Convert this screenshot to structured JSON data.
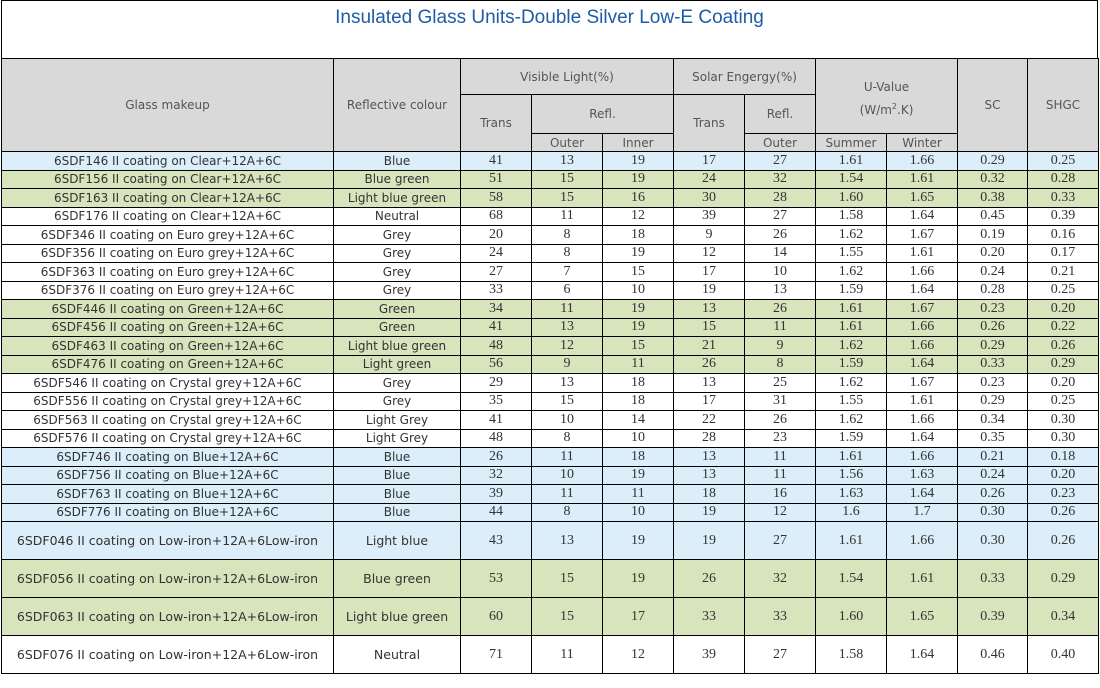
{
  "title": "Insulated Glass Units-Double Silver Low-E Coating",
  "headers": {
    "glass_makeup": "Glass makeup",
    "reflective_colour": "Reflective colour",
    "visible_light": "Visible Light(%)",
    "solar_energy": "Solar Engergy(%)",
    "u_value_line1": "U-Value",
    "u_value_unit_pre": "(W/m",
    "u_value_unit_sup": "2",
    "u_value_unit_post": ".K)",
    "sc": "SC",
    "shgc": "SHGC",
    "trans": "Trans",
    "refl": "Refl.",
    "outer": "Outer",
    "inner": "Inner",
    "summer": "Summer",
    "winter": "Winter"
  },
  "row_colors": {
    "blue": "#dbeef9",
    "green": "#d8e4bc",
    "white": "#ffffff",
    "header": "#d9d9d9",
    "title": "#1f5ba7"
  },
  "rows": [
    {
      "makeup": "6SDF146 II coating on Clear+12A+6C",
      "colour": "Blue",
      "vl_trans": "41",
      "vl_outer": "13",
      "vl_inner": "19",
      "se_trans": "17",
      "se_outer": "27",
      "u_summer": "1.61",
      "u_winter": "1.66",
      "sc": "0.29",
      "shgc": "0.25",
      "bg": "blue"
    },
    {
      "makeup": "6SDF156 II coating on Clear+12A+6C",
      "colour": "Blue green",
      "vl_trans": "51",
      "vl_outer": "15",
      "vl_inner": "19",
      "se_trans": "24",
      "se_outer": "32",
      "u_summer": "1.54",
      "u_winter": "1.61",
      "sc": "0.32",
      "shgc": "0.28",
      "bg": "green"
    },
    {
      "makeup": "6SDF163 II coating on Clear+12A+6C",
      "colour": "Light blue green",
      "vl_trans": "58",
      "vl_outer": "15",
      "vl_inner": "16",
      "se_trans": "30",
      "se_outer": "28",
      "u_summer": "1.60",
      "u_winter": "1.65",
      "sc": "0.38",
      "shgc": "0.33",
      "bg": "green"
    },
    {
      "makeup": "6SDF176 II coating on Clear+12A+6C",
      "colour": "Neutral",
      "vl_trans": "68",
      "vl_outer": "11",
      "vl_inner": "12",
      "se_trans": "39",
      "se_outer": "27",
      "u_summer": "1.58",
      "u_winter": "1.64",
      "sc": "0.45",
      "shgc": "0.39",
      "bg": "white"
    },
    {
      "makeup": "6SDF346 II coating on Euro grey+12A+6C",
      "colour": "Grey",
      "vl_trans": "20",
      "vl_outer": "8",
      "vl_inner": "18",
      "se_trans": "9",
      "se_outer": "26",
      "u_summer": "1.62",
      "u_winter": "1.67",
      "sc": "0.19",
      "shgc": "0.16",
      "bg": "white"
    },
    {
      "makeup": "6SDF356 II coating on Euro grey+12A+6C",
      "colour": "Grey",
      "vl_trans": "24",
      "vl_outer": "8",
      "vl_inner": "19",
      "se_trans": "12",
      "se_outer": "14",
      "u_summer": "1.55",
      "u_winter": "1.61",
      "sc": "0.20",
      "shgc": "0.17",
      "bg": "white"
    },
    {
      "makeup": "6SDF363 II coating on Euro grey+12A+6C",
      "colour": "Grey",
      "vl_trans": "27",
      "vl_outer": "7",
      "vl_inner": "15",
      "se_trans": "17",
      "se_outer": "10",
      "u_summer": "1.62",
      "u_winter": "1.66",
      "sc": "0.24",
      "shgc": "0.21",
      "bg": "white"
    },
    {
      "makeup": "6SDF376 II coating on Euro grey+12A+6C",
      "colour": "Grey",
      "vl_trans": "33",
      "vl_outer": "6",
      "vl_inner": "10",
      "se_trans": "19",
      "se_outer": "13",
      "u_summer": "1.59",
      "u_winter": "1.64",
      "sc": "0.28",
      "shgc": "0.25",
      "bg": "white"
    },
    {
      "makeup": "6SDF446 II coating on Green+12A+6C",
      "colour": "Green",
      "vl_trans": "34",
      "vl_outer": "11",
      "vl_inner": "19",
      "se_trans": "13",
      "se_outer": "26",
      "u_summer": "1.61",
      "u_winter": "1.67",
      "sc": "0.23",
      "shgc": "0.20",
      "bg": "green"
    },
    {
      "makeup": "6SDF456 II coating on Green+12A+6C",
      "colour": "Green",
      "vl_trans": "41",
      "vl_outer": "13",
      "vl_inner": "19",
      "se_trans": "15",
      "se_outer": "11",
      "u_summer": "1.61",
      "u_winter": "1.66",
      "sc": "0.26",
      "shgc": "0.22",
      "bg": "green"
    },
    {
      "makeup": "6SDF463 II coating on Green+12A+6C",
      "colour": "Light blue green",
      "vl_trans": "48",
      "vl_outer": "12",
      "vl_inner": "15",
      "se_trans": "21",
      "se_outer": "9",
      "u_summer": "1.62",
      "u_winter": "1.66",
      "sc": "0.29",
      "shgc": "0.26",
      "bg": "green"
    },
    {
      "makeup": "6SDF476 II coating on Green+12A+6C",
      "colour": "Light green",
      "vl_trans": "56",
      "vl_outer": "9",
      "vl_inner": "11",
      "se_trans": "26",
      "se_outer": "8",
      "u_summer": "1.59",
      "u_winter": "1.64",
      "sc": "0.33",
      "shgc": "0.29",
      "bg": "green"
    },
    {
      "makeup": "6SDF546 II coating on Crystal grey+12A+6C",
      "colour": "Grey",
      "vl_trans": "29",
      "vl_outer": "13",
      "vl_inner": "18",
      "se_trans": "13",
      "se_outer": "25",
      "u_summer": "1.62",
      "u_winter": "1.67",
      "sc": "0.23",
      "shgc": "0.20",
      "bg": "white"
    },
    {
      "makeup": "6SDF556 II coating on Crystal grey+12A+6C",
      "colour": "Grey",
      "vl_trans": "35",
      "vl_outer": "15",
      "vl_inner": "18",
      "se_trans": "17",
      "se_outer": "31",
      "u_summer": "1.55",
      "u_winter": "1.61",
      "sc": "0.29",
      "shgc": "0.25",
      "bg": "white"
    },
    {
      "makeup": "6SDF563 II coating on Crystal grey+12A+6C",
      "colour": "Light Grey",
      "vl_trans": "41",
      "vl_outer": "10",
      "vl_inner": "14",
      "se_trans": "22",
      "se_outer": "26",
      "u_summer": "1.62",
      "u_winter": "1.66",
      "sc": "0.34",
      "shgc": "0.30",
      "bg": "white"
    },
    {
      "makeup": "6SDF576 II coating on Crystal grey+12A+6C",
      "colour": "Light Grey",
      "vl_trans": "48",
      "vl_outer": "8",
      "vl_inner": "10",
      "se_trans": "28",
      "se_outer": "23",
      "u_summer": "1.59",
      "u_winter": "1.64",
      "sc": "0.35",
      "shgc": "0.30",
      "bg": "white"
    },
    {
      "makeup": "6SDF746 II coating on Blue+12A+6C",
      "colour": "Blue",
      "vl_trans": "26",
      "vl_outer": "11",
      "vl_inner": "18",
      "se_trans": "13",
      "se_outer": "11",
      "u_summer": "1.61",
      "u_winter": "1.66",
      "sc": "0.21",
      "shgc": "0.18",
      "bg": "blue"
    },
    {
      "makeup": "6SDF756 II coating on Blue+12A+6C",
      "colour": "Blue",
      "vl_trans": "32",
      "vl_outer": "10",
      "vl_inner": "19",
      "se_trans": "13",
      "se_outer": "11",
      "u_summer": "1.56",
      "u_winter": "1.63",
      "sc": "0.24",
      "shgc": "0.20",
      "bg": "blue"
    },
    {
      "makeup": "6SDF763 II coating on Blue+12A+6C",
      "colour": "Blue",
      "vl_trans": "39",
      "vl_outer": "11",
      "vl_inner": "11",
      "se_trans": "18",
      "se_outer": "16",
      "u_summer": "1.63",
      "u_winter": "1.64",
      "sc": "0.26",
      "shgc": "0.23",
      "bg": "blue"
    },
    {
      "makeup": "6SDF776 II coating on Blue+12A+6C",
      "colour": "Blue",
      "vl_trans": "44",
      "vl_outer": "8",
      "vl_inner": "10",
      "se_trans": "19",
      "se_outer": "12",
      "u_summer": "1.6",
      "u_winter": "1.7",
      "sc": "0.30",
      "shgc": "0.26",
      "bg": "blue"
    },
    {
      "makeup": "6SDF046 II coating on Low-iron+12A+6Low-iron",
      "colour": "Light blue",
      "vl_trans": "43",
      "vl_outer": "13",
      "vl_inner": "19",
      "se_trans": "19",
      "se_outer": "27",
      "u_summer": "1.61",
      "u_winter": "1.66",
      "sc": "0.30",
      "shgc": "0.26",
      "bg": "blue"
    },
    {
      "makeup": "6SDF056 II coating on Low-iron+12A+6Low-iron",
      "colour": "Blue green",
      "vl_trans": "53",
      "vl_outer": "15",
      "vl_inner": "19",
      "se_trans": "26",
      "se_outer": "32",
      "u_summer": "1.54",
      "u_winter": "1.61",
      "sc": "0.33",
      "shgc": "0.29",
      "bg": "green"
    },
    {
      "makeup": "6SDF063 II coating on Low-iron+12A+6Low-iron",
      "colour": "Light blue green",
      "vl_trans": "60",
      "vl_outer": "15",
      "vl_inner": "17",
      "se_trans": "33",
      "se_outer": "33",
      "u_summer": "1.60",
      "u_winter": "1.65",
      "sc": "0.39",
      "shgc": "0.34",
      "bg": "green"
    },
    {
      "makeup": "6SDF076 II coating on Low-iron+12A+6Low-iron",
      "colour": "Neutral",
      "vl_trans": "71",
      "vl_outer": "11",
      "vl_inner": "12",
      "se_trans": "39",
      "se_outer": "27",
      "u_summer": "1.58",
      "u_winter": "1.64",
      "sc": "0.46",
      "shgc": "0.40",
      "bg": "white"
    }
  ]
}
